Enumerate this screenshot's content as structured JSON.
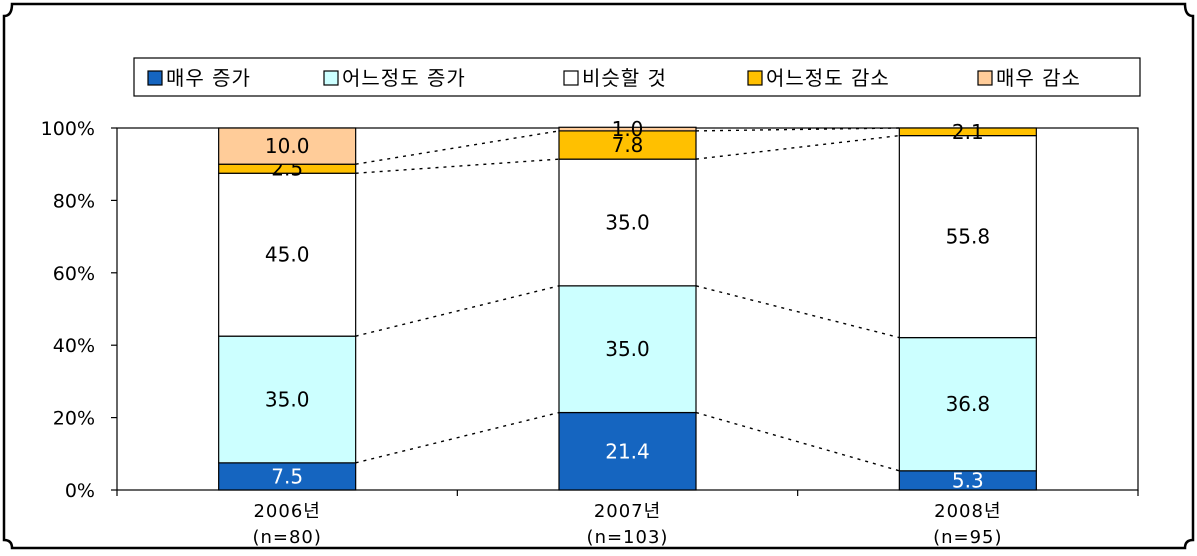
{
  "chart_data": {
    "type": "bar",
    "stacked": true,
    "percent": true,
    "categories": [
      {
        "year": "2006년",
        "n": "(n=80)"
      },
      {
        "year": "2007년",
        "n": "(n=103)"
      },
      {
        "year": "2008년",
        "n": "(n=95)"
      }
    ],
    "series": [
      {
        "name": "매우 증가",
        "color": "#1565c0",
        "label_color": "#ffffff",
        "values": [
          7.5,
          21.4,
          5.3
        ],
        "labels": [
          "7.5",
          "21.4",
          "5.3"
        ]
      },
      {
        "name": "어느정도 증가",
        "color": "#ccffff",
        "label_color": "#000000",
        "values": [
          35.0,
          35.0,
          36.8
        ],
        "labels": [
          "35.0",
          "35.0",
          "36.8"
        ]
      },
      {
        "name": "비슷할 것",
        "color": "#ffffff",
        "label_color": "#000000",
        "values": [
          45.0,
          35.0,
          55.8
        ],
        "labels": [
          "45.0",
          "35.0",
          "55.8"
        ]
      },
      {
        "name": "어느정도 감소",
        "color": "#ffc000",
        "label_color": "#000000",
        "values": [
          2.5,
          7.8,
          2.1
        ],
        "labels": [
          "2.5",
          "7.8",
          "2.1"
        ]
      },
      {
        "name": "매우 감소",
        "color": "#ffcc99",
        "label_color": "#000000",
        "values": [
          10.0,
          1.0,
          0.0
        ],
        "labels": [
          "10.0",
          "1.0",
          ""
        ]
      }
    ],
    "y_ticks": [
      "0%",
      "20%",
      "40%",
      "60%",
      "80%",
      "100%"
    ],
    "ylim": [
      0,
      100
    ],
    "legend_position": "top",
    "series_lines": "dotted"
  }
}
